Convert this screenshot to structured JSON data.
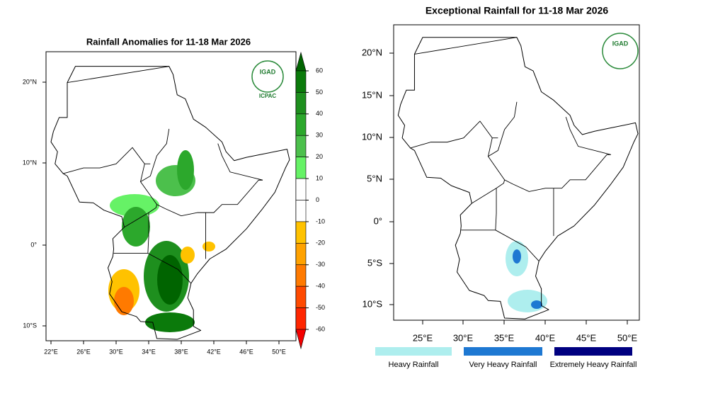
{
  "left_map": {
    "title": "Rainfall Anomalies for 11-18 Mar 2026",
    "lat_labels": [
      "20°N",
      "10°N",
      "0°",
      "10°S"
    ],
    "lon_labels": [
      "22°E",
      "26°E",
      "30°E",
      "34°E",
      "38°E",
      "42°E",
      "46°E",
      "50°E"
    ],
    "logo": {
      "name": "IGAD",
      "subtext": "ICPAC"
    },
    "colorbar": {
      "ticks": [
        60,
        50,
        40,
        30,
        20,
        10,
        0,
        -10,
        -20,
        -30,
        -40,
        -50,
        -60
      ],
      "colors": [
        "#006400",
        "#0b7a0b",
        "#1e8f1e",
        "#2ca82c",
        "#4cc04c",
        "#66f266",
        "#ffffff",
        "#ffffff",
        "#ffc200",
        "#ffa200",
        "#ff7a00",
        "#ff4a00",
        "#ff2600",
        "#f40000"
      ]
    }
  },
  "right_map": {
    "title": "Exceptional Rainfall for 11-18 Mar 2026",
    "lat_labels": [
      "20°N",
      "15°N",
      "10°N",
      "5°N",
      "0°",
      "5°S",
      "10°S"
    ],
    "lon_labels": [
      "25°E",
      "30°E",
      "35°E",
      "40°E",
      "45°E",
      "50°E"
    ],
    "logo": {
      "name": "IGAD"
    },
    "legend": [
      {
        "name": "Heavy Rainfall",
        "color": "#aeeeee"
      },
      {
        "name": "Very Heavy Rainfall",
        "color": "#1e78d2"
      },
      {
        "name": "Extremely Heavy Rainfall",
        "color": "#000080"
      }
    ]
  }
}
